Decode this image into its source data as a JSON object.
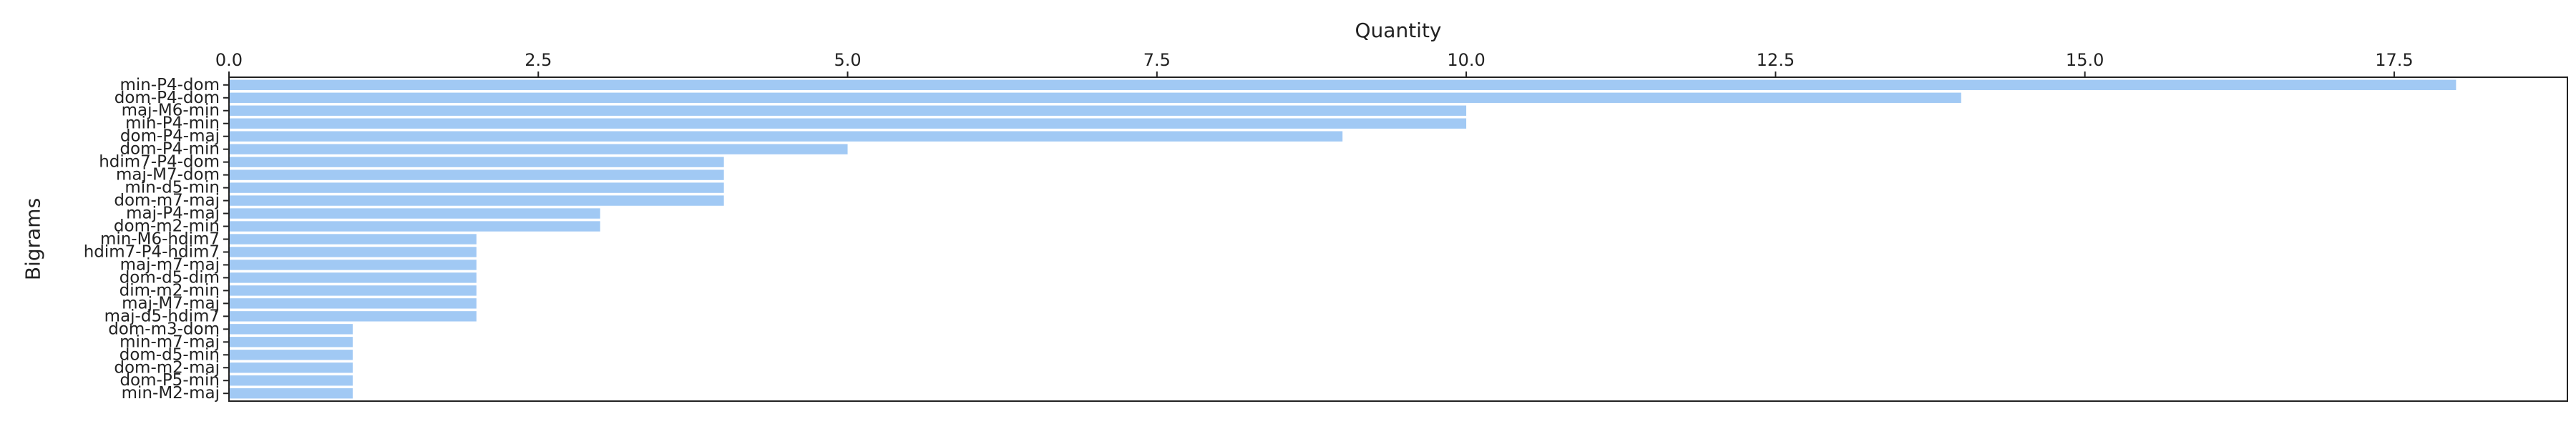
{
  "chart_data": {
    "type": "bar",
    "orientation": "horizontal",
    "xlabel": "Quantity",
    "ylabel": "Bigrams",
    "xlim": [
      0,
      18.9
    ],
    "xticks": [
      0,
      2.5,
      5,
      7.5,
      10,
      12.5,
      15,
      17.5
    ],
    "xtick_labels": [
      "0.0",
      "2.5",
      "5.0",
      "7.5",
      "10.0",
      "12.5",
      "15.0",
      "17.5"
    ],
    "x_axis_position": "top",
    "grid": false,
    "bar_color": "#a1c9f4",
    "categories": [
      "min-P4-dom",
      "dom-P4-dom",
      "maj-M6-min",
      "min-P4-min",
      "dom-P4-maj",
      "dom-P4-min",
      "hdim7-P4-dom",
      "maj-M7-dom",
      "min-d5-min",
      "dom-m7-maj",
      "maj-P4-maj",
      "dom-m2-min",
      "min-M6-hdim7",
      "hdim7-P4-hdim7",
      "maj-m7-maj",
      "dom-d5-dim",
      "dim-m2-min",
      "maj-M7-maj",
      "maj-d5-hdim7",
      "dom-m3-dom",
      "min-m7-maj",
      "dom-d5-min",
      "dom-m2-maj",
      "dom-P5-min",
      "min-M2-maj"
    ],
    "values": [
      18,
      14,
      10,
      10,
      9,
      5,
      4,
      4,
      4,
      4,
      3,
      3,
      2,
      2,
      2,
      2,
      2,
      2,
      2,
      1,
      1,
      1,
      1,
      1,
      1
    ]
  }
}
